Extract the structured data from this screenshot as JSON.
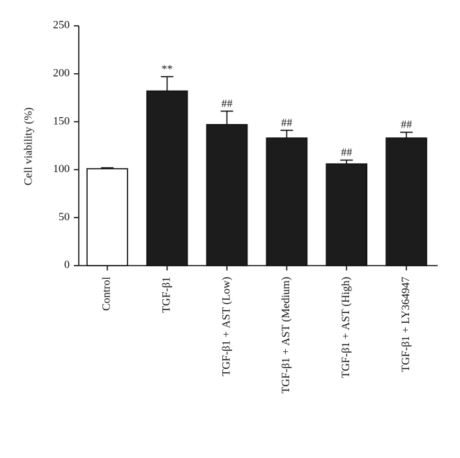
{
  "chart_data": {
    "type": "bar",
    "y_label": "Cell viability (%)",
    "categories": [
      "Control",
      "TGF-β1",
      "TGF-β1 + AST (Low)",
      "TGF-β1 + AST (Medium)",
      "TGF-β1 + AST (High)",
      "TGF-β1 + LY364947"
    ],
    "values": [
      101,
      182,
      147,
      133,
      106,
      133
    ],
    "errors": [
      1,
      15,
      14,
      8,
      4,
      6
    ],
    "annotations": [
      null,
      "**",
      "##",
      "##",
      "##",
      "##"
    ],
    "colors": [
      "#ffffff",
      "#1c1c1c",
      "#1c1c1c",
      "#1c1c1c",
      "#1c1c1c",
      "#1c1c1c"
    ],
    "ylim": [
      0,
      250
    ],
    "yticks": [
      0,
      50,
      100,
      150,
      200,
      250
    ]
  }
}
